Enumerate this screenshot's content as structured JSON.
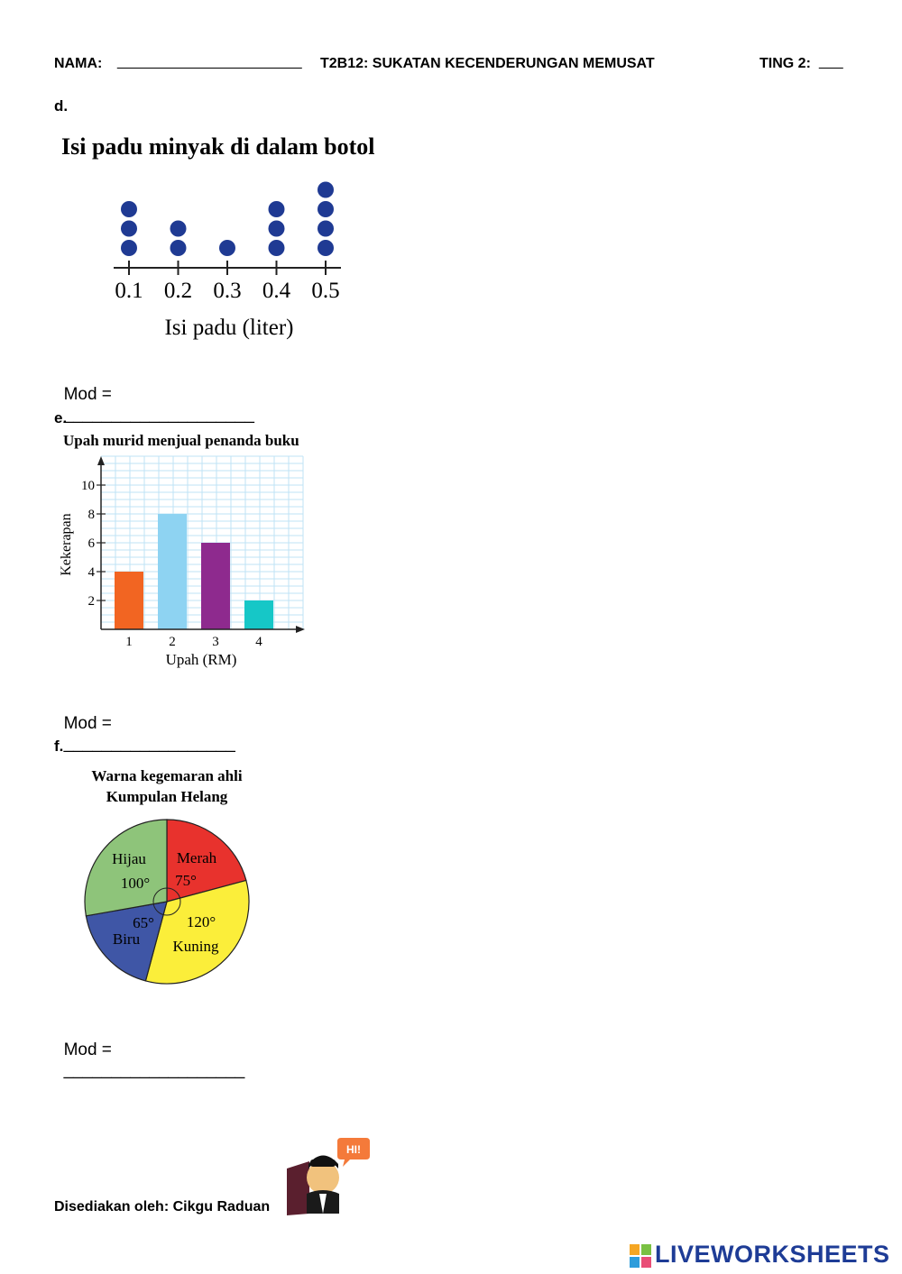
{
  "header": {
    "name_label": "NAMA:",
    "name_blank": "_______________________",
    "title": "T2B12: SUKATAN KECENDERUNGAN MEMUSAT",
    "class_label": "TING 2:",
    "class_blank": "___"
  },
  "questions": {
    "d": {
      "label": "d.",
      "answer_label": "Mod =",
      "answer_blank": "____________________",
      "chart": {
        "title": "Isi padu minyak di dalam botol",
        "xlabel": "Isi padu (liter)",
        "ticks": [
          "0.1",
          "0.2",
          "0.3",
          "0.4",
          "0.5"
        ]
      }
    },
    "e": {
      "label": "e.",
      "answer_label": "Mod =",
      "answer_blank": "__________________",
      "chart": {
        "title": "Upah murid menjual penanda buku",
        "xlabel": "Upah (RM)",
        "ylabel": "Kekerapan",
        "yticks": [
          "2",
          "4",
          "6",
          "8",
          "10"
        ],
        "xticks": [
          "1",
          "2",
          "3",
          "4"
        ]
      }
    },
    "f": {
      "label": "f.",
      "answer_label": "Mod =",
      "answer_blank": "___________________",
      "chart": {
        "title_line1": "Warna kegemaran ahli",
        "title_line2": "Kumpulan Helang",
        "labels": {
          "merah": "Merah",
          "merah_angle": "75°",
          "kuning": "Kuning",
          "kuning_angle": "120°",
          "biru": "Biru",
          "biru_angle": "65°",
          "hijau": "Hijau",
          "hijau_angle": "100°"
        }
      }
    }
  },
  "footer": {
    "prepared_by": "Disediakan oleh: Cikgu Raduan",
    "bubble_text": "HI!",
    "brand": "LIVEWORKSHEETS",
    "logo_letters": "LW"
  },
  "colors": {
    "dot": "#1f3a93",
    "bar_1": "#f26522",
    "bar_2": "#8ed3f2",
    "bar_3": "#8e2a8e",
    "bar_4": "#16c7c7",
    "pie_merah": "#e8322d",
    "pie_kuning": "#fbee3a",
    "pie_biru": "#3f56a6",
    "pie_hijau": "#8ec47a",
    "brand": "#1e3c96"
  },
  "chart_data": [
    {
      "type": "scatter",
      "title": "Isi padu minyak di dalam botol",
      "xlabel": "Isi padu (liter)",
      "ylabel": "",
      "x": [
        0.1,
        0.2,
        0.3,
        0.4,
        0.5
      ],
      "counts": [
        3,
        2,
        1,
        3,
        4
      ]
    },
    {
      "type": "bar",
      "title": "Upah murid menjual penanda buku",
      "xlabel": "Upah (RM)",
      "ylabel": "Kekerapan",
      "categories": [
        "1",
        "2",
        "3",
        "4"
      ],
      "values": [
        4,
        8,
        6,
        2
      ],
      "ylim": [
        0,
        10
      ],
      "grid": true
    },
    {
      "type": "pie",
      "title": "Warna kegemaran ahli Kumpulan Helang",
      "categories": [
        "Merah",
        "Kuning",
        "Biru",
        "Hijau"
      ],
      "values": [
        75,
        120,
        65,
        100
      ]
    }
  ]
}
